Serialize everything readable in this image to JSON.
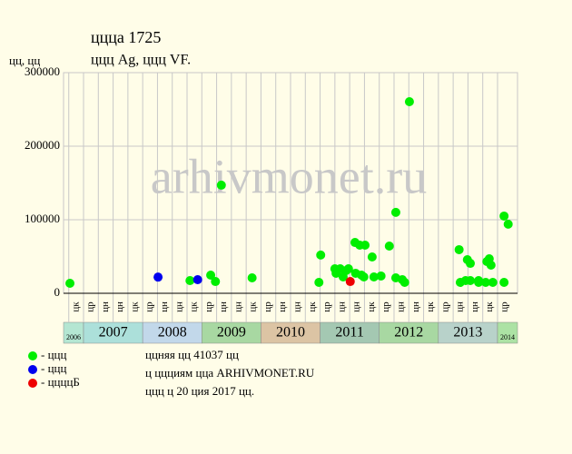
{
  "chart_data": {
    "type": "scatter",
    "title": "ццца 1725",
    "subtitle": "ццц Ag, ццц VF.",
    "y_label": "цц, цц",
    "watermark": "arhivmonet.ru",
    "ylim": [
      0,
      300000
    ],
    "yticks": [
      0,
      100000,
      200000,
      300000
    ],
    "xlim": [
      2006.662,
      2014.338
    ],
    "grid": true,
    "xticks": [
      {
        "value": 2006.75,
        "label": "цк"
      },
      {
        "value": 2007.0,
        "label": "цр"
      },
      {
        "value": 2007.25,
        "label": "цн"
      },
      {
        "value": 2007.5,
        "label": "цн"
      },
      {
        "value": 2007.75,
        "label": "цк"
      },
      {
        "value": 2008.0,
        "label": "цр"
      },
      {
        "value": 2008.25,
        "label": "цн"
      },
      {
        "value": 2008.5,
        "label": "цн"
      },
      {
        "value": 2008.75,
        "label": "цк"
      },
      {
        "value": 2009.0,
        "label": "цр"
      },
      {
        "value": 2009.25,
        "label": "цн"
      },
      {
        "value": 2009.5,
        "label": "цн"
      },
      {
        "value": 2009.75,
        "label": "цк"
      },
      {
        "value": 2010.0,
        "label": "цр"
      },
      {
        "value": 2010.25,
        "label": "цн"
      },
      {
        "value": 2010.5,
        "label": "цн"
      },
      {
        "value": 2010.75,
        "label": "цк"
      },
      {
        "value": 2011.0,
        "label": "цр"
      },
      {
        "value": 2011.25,
        "label": "цн"
      },
      {
        "value": 2011.5,
        "label": "цн"
      },
      {
        "value": 2011.75,
        "label": "цк"
      },
      {
        "value": 2012.0,
        "label": "цр"
      },
      {
        "value": 2012.25,
        "label": "цн"
      },
      {
        "value": 2012.5,
        "label": "цн"
      },
      {
        "value": 2012.75,
        "label": "цк"
      },
      {
        "value": 2013.0,
        "label": "цр"
      },
      {
        "value": 2013.25,
        "label": "цн"
      },
      {
        "value": 2013.5,
        "label": "цн"
      },
      {
        "value": 2013.75,
        "label": "цк"
      },
      {
        "value": 2014.0,
        "label": "цр"
      }
    ],
    "years": [
      {
        "year": 2006,
        "color": "#b4e6d2"
      },
      {
        "year": 2007,
        "color": "#ace0da"
      },
      {
        "year": 2008,
        "color": "#c2d8ea"
      },
      {
        "year": 2009,
        "color": "#a8d8a2"
      },
      {
        "year": 2010,
        "color": "#dcc4a4"
      },
      {
        "year": 2011,
        "color": "#a4c8b2"
      },
      {
        "year": 2012,
        "color": "#a8d8a2"
      },
      {
        "year": 2013,
        "color": "#b8d2ca"
      },
      {
        "year": 2014,
        "color": "#ace2a4"
      }
    ],
    "series": [
      {
        "name": "- ццц",
        "color": "#00ee00",
        "x": [
          2006.77,
          2008.8,
          2009.15,
          2009.23,
          2009.33,
          2009.85,
          2010.98,
          2011.01,
          2011.25,
          2011.34,
          2011.27,
          2011.44,
          2011.48,
          2011.39,
          2011.59,
          2011.67,
          2011.76,
          2011.6,
          2011.7,
          2011.74,
          2011.88,
          2011.91,
          2012.03,
          2012.17,
          2012.28,
          2012.28,
          2012.39,
          2012.43,
          2012.51,
          2013.35,
          2013.37,
          2013.46,
          2013.49,
          2013.54,
          2013.54,
          2013.68,
          2013.68,
          2013.82,
          2013.86,
          2013.89,
          2013.8,
          2013.92,
          2014.11,
          2014.11,
          2014.18
        ],
        "values": [
          13600,
          17300,
          24700,
          16000,
          147000,
          21000,
          14800,
          52000,
          33300,
          33300,
          27200,
          30900,
          33300,
          22200,
          69100,
          65400,
          65400,
          27200,
          24700,
          22200,
          49400,
          22200,
          23500,
          64200,
          110000,
          21000,
          18500,
          14800,
          260500,
          59300,
          14800,
          17300,
          45700,
          40700,
          17300,
          17300,
          14800,
          43200,
          46900,
          38300,
          14800,
          14800,
          14800,
          105000,
          94000
        ]
      },
      {
        "name": "- ццц",
        "color": "#0000ee",
        "x": [
          2008.26,
          2008.93
        ],
        "values": [
          22000,
          18500
        ]
      },
      {
        "name": "- ццццБ",
        "color": "#ee0000",
        "x": [
          2011.51
        ],
        "values": [
          16000
        ]
      }
    ],
    "notes": [
      "ццняя цц 41037 цц",
      "ц ццциям цца ARHIVMONET.RU",
      "ццц ц 20 ция 2017 цц."
    ]
  }
}
